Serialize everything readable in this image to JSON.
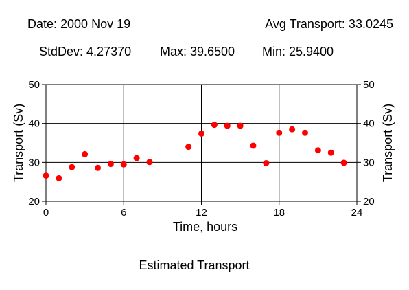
{
  "header": {
    "date": "Date: 2000 Nov 19",
    "avg": "Avg Transport: 33.0245",
    "stddev": "StdDev: 4.27370",
    "max": "Max: 39.6500",
    "min": "Min: 25.9400"
  },
  "chart_data": {
    "type": "scatter",
    "title": "Estimated Transport",
    "xlabel": "Time, hours",
    "ylabel": "Transport (Sv)",
    "xlim": [
      0,
      24
    ],
    "ylim": [
      20,
      50
    ],
    "xticks": [
      0,
      6,
      12,
      18,
      24
    ],
    "yticks": [
      20,
      30,
      40,
      50
    ],
    "grid": true,
    "marker_color": "#ff0000",
    "x": [
      0,
      1,
      2,
      3,
      4,
      5,
      6,
      7,
      8,
      11,
      12,
      13,
      14,
      15,
      16,
      17,
      18,
      19,
      20,
      21,
      22,
      23
    ],
    "y": [
      26.6,
      25.94,
      28.8,
      32.1,
      28.6,
      29.6,
      29.5,
      31.1,
      30.1,
      34.0,
      37.4,
      39.65,
      39.4,
      39.4,
      34.3,
      29.8,
      37.6,
      38.5,
      37.6,
      33.1,
      32.5,
      29.9
    ]
  }
}
